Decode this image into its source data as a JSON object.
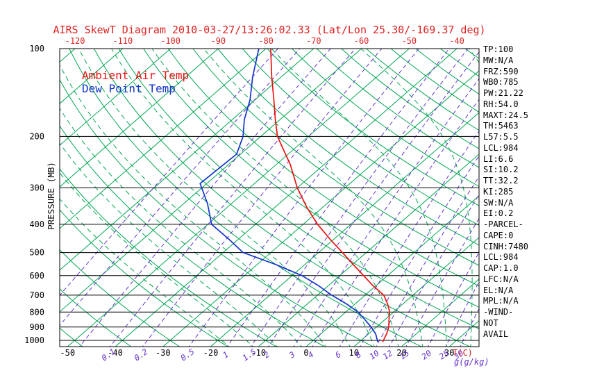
{
  "title": "AIRS SkewT Diagram 2010-03-27/13:26:02.33 (Lat/Lon 25.30/-169.37 deg)",
  "legend": {
    "ambient": "Ambient Air Temp",
    "dew_point": "Dew Point Temp"
  },
  "axes": {
    "pressure_axis_label": "PRESSURE (MB)",
    "pressure_ticks": [
      100,
      200,
      300,
      400,
      500,
      600,
      700,
      800,
      900,
      1000
    ],
    "top_temp_ticks": [
      -120,
      -110,
      -100,
      -90,
      -80,
      -70,
      -60,
      -50,
      -40
    ],
    "bottom_temp_ticks": [
      -50,
      -40,
      -30,
      -20,
      -10,
      0,
      10,
      20,
      30
    ],
    "bottom_temp_unit": "T(C)",
    "mixing_ratio_ticks": [
      0.1,
      0.2,
      0.5,
      1,
      1.5,
      2,
      3,
      4,
      6,
      8,
      10,
      12,
      15,
      20,
      25,
      30
    ],
    "mixing_ratio_unit": "g(g/kg)"
  },
  "panel": {
    "stats": [
      "TP:100",
      "MW:N/A",
      "FRZ:590",
      "WB0:785",
      "PW:21.22",
      "RH:54.0",
      "MAXT:24.5",
      "TH:5463",
      "L57:5.5",
      "LCL:984",
      "LI:6.6",
      "SI:10.2",
      "TT:32.2",
      "KI:285",
      "SW:N/A",
      "EI:0.2",
      "-PARCEL-",
      "CAPE:0",
      "CINH:7480",
      "LCL:984",
      "CAP:1.0",
      "LFC:N/A",
      "EL:N/A",
      "MPL:N/A",
      "-WIND-",
      "NOT",
      "AVAIL"
    ]
  },
  "colors": {
    "label_red": "#dd2222",
    "line_green": "#00a651",
    "line_purple": "#6633cc",
    "axis_black": "#000000",
    "background": "#ffffff"
  },
  "chart_data": {
    "type": "line",
    "chart_kind": "skew-t-log-p",
    "title": "AIRS SkewT Diagram 2010-03-27/13:26:02.33 (Lat/Lon 25.30/-169.37 deg)",
    "xlabel": "T(C)",
    "ylabel": "PRESSURE (MB)",
    "y_scale": "log",
    "y_range": [
      100,
      1050
    ],
    "y_direction": "down",
    "x_bottom_range": [
      -50,
      35
    ],
    "x_top_range": [
      -130,
      -35
    ],
    "grid": "skew-t background (isotherms, dry/moist adiabats, mixing ratio lines)",
    "legend_position": "top-left-inside",
    "series": [
      {
        "name": "Ambient Air Temp",
        "color": "#ee1111",
        "points": [
          [
            100,
            -79
          ],
          [
            125,
            -72
          ],
          [
            150,
            -66
          ],
          [
            175,
            -61
          ],
          [
            200,
            -56.5
          ],
          [
            250,
            -47
          ],
          [
            300,
            -40
          ],
          [
            350,
            -33.3
          ],
          [
            400,
            -27
          ],
          [
            450,
            -20.8
          ],
          [
            500,
            -15
          ],
          [
            550,
            -9.8
          ],
          [
            600,
            -5
          ],
          [
            650,
            -0.6
          ],
          [
            700,
            3.9
          ],
          [
            750,
            6.8
          ],
          [
            800,
            9.2
          ],
          [
            850,
            10.9
          ],
          [
            900,
            12.6
          ],
          [
            950,
            13.8
          ],
          [
            1013,
            14.9
          ]
        ]
      },
      {
        "name": "Dew Point Temp",
        "color": "#1133cc",
        "points": [
          [
            100,
            -81.5
          ],
          [
            125,
            -76
          ],
          [
            150,
            -71
          ],
          [
            175,
            -67.5
          ],
          [
            200,
            -63.7
          ],
          [
            230,
            -60.8
          ],
          [
            290,
            -61.4
          ],
          [
            340,
            -55
          ],
          [
            400,
            -49.2
          ],
          [
            450,
            -42
          ],
          [
            500,
            -35.8
          ],
          [
            550,
            -26
          ],
          [
            600,
            -17.9
          ],
          [
            650,
            -12
          ],
          [
            700,
            -7
          ],
          [
            750,
            -1.8
          ],
          [
            800,
            2.6
          ],
          [
            850,
            5.9
          ],
          [
            900,
            8.9
          ],
          [
            950,
            11.5
          ],
          [
            1013,
            13.9
          ]
        ]
      }
    ],
    "background": {
      "isotherms": {
        "min": -140,
        "max": 40,
        "step": 10,
        "unit": "degC"
      },
      "dry_adiabats": {
        "min": -60,
        "max": 190,
        "step": 10,
        "unit": "degC"
      },
      "moist_adiabats": [
        -15,
        -10,
        -5,
        0,
        5,
        10,
        15,
        20,
        25,
        30,
        35,
        40
      ],
      "mixing_ratio_lines": [
        0.01,
        0.02,
        0.05,
        0.1,
        0.2,
        0.5,
        1,
        1.5,
        2,
        3,
        4,
        6,
        8,
        10,
        12,
        15,
        20,
        25,
        30
      ]
    }
  }
}
